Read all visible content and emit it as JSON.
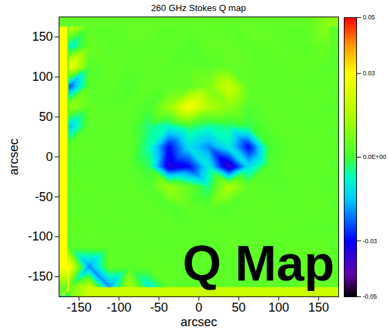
{
  "chart_data": {
    "type": "heatmap",
    "title": "260 GHz Stokes Q map",
    "x_label": "arcsec",
    "y_label": "arcsec",
    "annotation": "Q Map",
    "xlim": [
      -175,
      175
    ],
    "ylim": [
      -175,
      175
    ],
    "xticks": [
      -150,
      -100,
      -50,
      0,
      50,
      100,
      150
    ],
    "yticks": [
      -150,
      -100,
      -50,
      0,
      50,
      100,
      150
    ],
    "x": [
      -162.5,
      -137.5,
      -112.5,
      -87.5,
      -62.5,
      -37.5,
      -12.5,
      12.5,
      37.5,
      62.5,
      87.5,
      112.5,
      137.5,
      162.5
    ],
    "y": [
      162.5,
      137.5,
      112.5,
      87.5,
      62.5,
      37.5,
      12.5,
      -12.5,
      -37.5,
      -62.5,
      -87.5,
      -112.5,
      -137.5,
      -162.5
    ],
    "values": [
      [
        0.02,
        0.004,
        0.003,
        0.004,
        0.005,
        0.003,
        0.004,
        0.004,
        0.003,
        0.005,
        0.004,
        0.003,
        0.004,
        0.01
      ],
      [
        -0.01,
        0.005,
        0.003,
        0.004,
        0.003,
        0.004,
        0.002,
        0.004,
        0.005,
        0.003,
        0.004,
        0.004,
        0.003,
        0.005
      ],
      [
        0.03,
        0.002,
        0.004,
        0.003,
        0.004,
        0.003,
        0.004,
        0.003,
        0.004,
        0.004,
        0.003,
        0.004,
        0.004,
        0.003
      ],
      [
        -0.025,
        0.003,
        0.004,
        0.002,
        0.004,
        0.003,
        0.004,
        0.008,
        0.02,
        0.004,
        0.003,
        0.004,
        0.003,
        0.004
      ],
      [
        0.012,
        0.004,
        0.003,
        0.004,
        0.001,
        0.012,
        0.03,
        0.015,
        0.01,
        0.002,
        0.004,
        0.003,
        0.004,
        0.003
      ],
      [
        -0.015,
        0.003,
        0.004,
        0.003,
        -0.004,
        -0.008,
        -0.002,
        -0.006,
        -0.004,
        -0.002,
        0.003,
        0.004,
        0.003,
        0.004
      ],
      [
        0.004,
        0.004,
        0.003,
        0.004,
        -0.006,
        -0.03,
        -0.012,
        -0.02,
        -0.01,
        -0.03,
        0.0,
        0.003,
        0.004,
        0.003
      ],
      [
        0.003,
        0.003,
        0.004,
        0.003,
        -0.002,
        -0.035,
        -0.03,
        -0.01,
        -0.038,
        -0.012,
        0.002,
        0.004,
        0.003,
        0.004
      ],
      [
        0.004,
        0.004,
        0.003,
        0.004,
        0.002,
        0.012,
        0.004,
        -0.004,
        0.015,
        0.004,
        0.003,
        0.003,
        0.004,
        0.003
      ],
      [
        0.003,
        0.003,
        0.004,
        0.003,
        0.004,
        0.002,
        0.004,
        0.003,
        0.002,
        0.004,
        0.004,
        0.003,
        0.004,
        0.004
      ],
      [
        0.004,
        0.004,
        0.003,
        0.004,
        0.003,
        0.004,
        0.003,
        0.004,
        0.004,
        0.003,
        0.004,
        0.004,
        0.003,
        0.003
      ],
      [
        0.003,
        0.004,
        0.004,
        0.003,
        0.004,
        0.003,
        0.004,
        0.003,
        0.004,
        0.004,
        0.003,
        0.004,
        0.004,
        0.004
      ],
      [
        0.03,
        -0.02,
        0.004,
        0.003,
        0.004,
        0.004,
        0.003,
        0.004,
        0.003,
        0.004,
        0.004,
        0.003,
        0.004,
        0.003
      ],
      [
        0.005,
        0.02,
        -0.02,
        0.015,
        -0.01,
        0.004,
        0.003,
        0.004,
        0.004,
        0.003,
        0.004,
        0.003,
        0.006,
        0.004
      ]
    ],
    "colorbar_range": [
      -0.05,
      0.05
    ],
    "colorbar_ticks": [
      -0.05,
      -0.03,
      {
        "value": 0,
        "label": "0.0E+00"
      },
      0.03,
      0.05
    ]
  }
}
